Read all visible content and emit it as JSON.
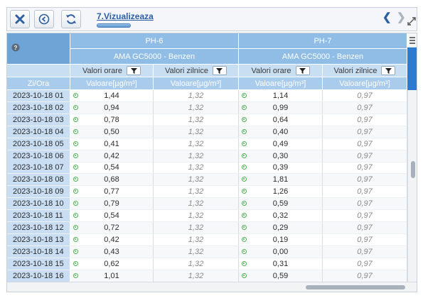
{
  "toolbar": {
    "tab_title": "7.Vizualizeaza",
    "close_icon": "close-icon",
    "back_icon": "back-circle-icon",
    "refresh_icon": "refresh-icon"
  },
  "grid": {
    "stations": [
      {
        "name": "PH-6",
        "instrument": "AMA GC5000 - Benzen",
        "hourly_label": "Valori orare",
        "daily_label": "Valori zilnice",
        "hourly_unit": "Valoare[µg/m³]",
        "daily_unit": "Valoare[µg/m³]"
      },
      {
        "name": "PH-7",
        "instrument": "AMA GC5000 - Benzen",
        "hourly_label": "Valori orare",
        "daily_label": "Valori zilnice",
        "hourly_unit": "Valoare[µg/m³]",
        "daily_unit": "Valoare[µg/m³]"
      }
    ],
    "date_header": "Zi/Ora",
    "rows": [
      {
        "date": "2023-10-18 01",
        "ph6_hourly": "1,44",
        "ph6_daily": "1,32",
        "ph7_hourly": "1,14",
        "ph7_daily": "0,97"
      },
      {
        "date": "2023-10-18 02",
        "ph6_hourly": "0,94",
        "ph6_daily": "1,32",
        "ph7_hourly": "0,99",
        "ph7_daily": "0,97"
      },
      {
        "date": "2023-10-18 03",
        "ph6_hourly": "0,78",
        "ph6_daily": "1,32",
        "ph7_hourly": "0,64",
        "ph7_daily": "0,97"
      },
      {
        "date": "2023-10-18 04",
        "ph6_hourly": "0,50",
        "ph6_daily": "1,32",
        "ph7_hourly": "0,40",
        "ph7_daily": "0,97"
      },
      {
        "date": "2023-10-18 05",
        "ph6_hourly": "0,41",
        "ph6_daily": "1,32",
        "ph7_hourly": "0,49",
        "ph7_daily": "0,97"
      },
      {
        "date": "2023-10-18 06",
        "ph6_hourly": "0,42",
        "ph6_daily": "1,32",
        "ph7_hourly": "0,30",
        "ph7_daily": "0,97"
      },
      {
        "date": "2023-10-18 07",
        "ph6_hourly": "0,54",
        "ph6_daily": "1,32",
        "ph7_hourly": "0,39",
        "ph7_daily": "0,97"
      },
      {
        "date": "2023-10-18 08",
        "ph6_hourly": "0,68",
        "ph6_daily": "1,32",
        "ph7_hourly": "1,81",
        "ph7_daily": "0,97"
      },
      {
        "date": "2023-10-18 09",
        "ph6_hourly": "0,77",
        "ph6_daily": "1,32",
        "ph7_hourly": "1,26",
        "ph7_daily": "0,97"
      },
      {
        "date": "2023-10-18 10",
        "ph6_hourly": "0,79",
        "ph6_daily": "1,32",
        "ph7_hourly": "0,59",
        "ph7_daily": "0,97"
      },
      {
        "date": "2023-10-18 11",
        "ph6_hourly": "0,54",
        "ph6_daily": "1,32",
        "ph7_hourly": "0,32",
        "ph7_daily": "0,97"
      },
      {
        "date": "2023-10-18 12",
        "ph6_hourly": "0,72",
        "ph6_daily": "1,32",
        "ph7_hourly": "0,29",
        "ph7_daily": "0,97"
      },
      {
        "date": "2023-10-18 13",
        "ph6_hourly": "0,42",
        "ph6_daily": "1,32",
        "ph7_hourly": "0,19",
        "ph7_daily": "0,97"
      },
      {
        "date": "2023-10-18 14",
        "ph6_hourly": "0,43",
        "ph6_daily": "1,32",
        "ph7_hourly": "0,00",
        "ph7_daily": "0,97"
      },
      {
        "date": "2023-10-18 15",
        "ph6_hourly": "0,62",
        "ph6_daily": "1,32",
        "ph7_hourly": "0,31",
        "ph7_daily": "0,97"
      },
      {
        "date": "2023-10-18 16",
        "ph6_hourly": "1,01",
        "ph6_daily": "1,32",
        "ph7_hourly": "0,59",
        "ph7_daily": "0,97"
      }
    ]
  },
  "colors": {
    "header_blue": "#8fbde6",
    "header_light": "#c8def3",
    "status_ok": "#4caf50",
    "link": "#2a5fa6"
  }
}
